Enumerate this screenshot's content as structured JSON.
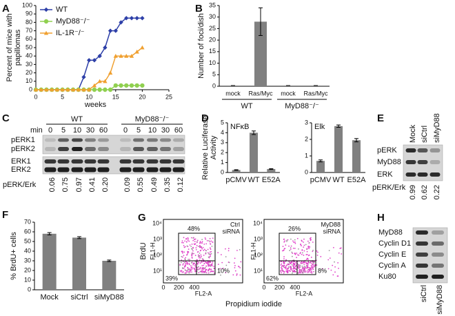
{
  "panel_labels": [
    "A",
    "B",
    "C",
    "D",
    "E",
    "F",
    "G",
    "H"
  ],
  "chart_data": [
    {
      "type": "line",
      "ylabel": [
        "Percent of mice with",
        "papillomas"
      ],
      "xlabel": "weeks",
      "x": [
        0,
        1,
        2,
        3,
        4,
        5,
        6,
        7,
        8,
        9,
        10,
        11,
        12,
        13,
        14,
        15,
        16,
        17,
        18,
        19,
        20
      ],
      "series": [
        {
          "name": "WT",
          "color": "#2d3fa8",
          "marker": "diamond",
          "values": [
            0,
            0,
            0,
            0,
            0,
            0,
            0,
            0,
            0,
            15,
            35,
            35,
            40,
            50,
            70,
            70,
            80,
            85,
            85,
            85,
            85
          ]
        },
        {
          "name": "MyD88⁻/⁻",
          "color": "#90d050",
          "marker": "circle",
          "values": [
            0,
            0,
            0,
            0,
            0,
            0,
            0,
            0,
            0,
            0,
            0,
            0,
            0,
            0,
            0,
            5,
            5,
            5,
            5,
            5,
            5
          ]
        },
        {
          "name": "IL-1R⁻/⁻",
          "color": "#f0a030",
          "marker": "triangle",
          "values": [
            0,
            0,
            0,
            0,
            0,
            0,
            0,
            0,
            0,
            0,
            0,
            5,
            10,
            10,
            20,
            40,
            40,
            40,
            40,
            45,
            50
          ]
        }
      ],
      "xlim": [
        0,
        25
      ],
      "xticks": [
        0,
        5,
        10,
        15,
        20,
        25
      ],
      "ylim": [
        0,
        100
      ],
      "yticks": [
        0,
        10,
        20,
        30,
        40,
        50,
        60,
        70,
        80,
        90,
        100
      ],
      "legend": "upper left"
    },
    {
      "type": "bar",
      "ylabel": "Number of foci/dish",
      "categories": [
        "mock",
        "Ras/Myc",
        "mock",
        "Ras/Myc"
      ],
      "groups": [
        "WT",
        "MyD88⁻/⁻"
      ],
      "values": [
        0.3,
        28,
        0.3,
        0.3
      ],
      "errors": [
        0,
        6,
        0,
        0
      ],
      "color": "#808080",
      "ylim": [
        0,
        35
      ],
      "yticks": [
        0,
        5,
        10,
        15,
        20,
        25,
        30,
        35
      ]
    },
    {
      "type": "bar",
      "title": "NFκB",
      "ylabel": [
        "Relative Luciferase",
        "Activity"
      ],
      "categories": [
        "pCMV",
        "WT",
        "E52A"
      ],
      "values": [
        0.25,
        4.0,
        0.35
      ],
      "errors": [
        0.03,
        0.18,
        0.03
      ],
      "color": "#808080",
      "ylim": [
        0,
        5
      ],
      "yticks": [
        0,
        1,
        2,
        3,
        4,
        5
      ]
    },
    {
      "type": "bar",
      "title": "Elk",
      "categories": [
        "pCMV",
        "WT",
        "E52A"
      ],
      "values": [
        0.7,
        2.8,
        1.95
      ],
      "errors": [
        0.06,
        0.07,
        0.1
      ],
      "color": "#808080",
      "ylim": [
        0,
        3
      ],
      "yticks": [
        0,
        1,
        2,
        3
      ]
    },
    {
      "type": "bar",
      "ylabel": "% BrdU+ cells",
      "categories": [
        "Mock",
        "siCtrl",
        "siMyD88"
      ],
      "values": [
        58,
        54,
        30
      ],
      "errors": [
        1.2,
        1,
        0.8
      ],
      "color": "#808080",
      "ylim": [
        0,
        70
      ],
      "yticks": [
        0,
        10,
        20,
        30,
        40,
        50,
        60,
        70
      ]
    }
  ],
  "blot_c": {
    "min_label": "min",
    "groups": [
      "WT",
      "MyD88⁻/⁻"
    ],
    "timepoints": [
      0,
      5,
      10,
      30,
      60,
      0,
      5,
      10,
      30,
      60
    ],
    "rows": [
      "pERK1",
      "pERK2",
      "ERK1",
      "ERK2"
    ],
    "ratio_label": "pERK/Erk",
    "ratios": [
      "0.06",
      "0.75",
      "0.97",
      "0.41",
      "0.20",
      "0.09",
      "0.55",
      "0.49",
      "0.35",
      "0.12"
    ]
  },
  "blot_e": {
    "lanes": [
      "Mock",
      "siCtrl",
      "siMyD88"
    ],
    "rows": [
      "pERK",
      "MyD88",
      "ERK"
    ],
    "ratio_label": "pERK/Erk",
    "ratios": [
      "0.99",
      "0.62",
      "0.22"
    ]
  },
  "flow": {
    "ylabel": "BrdU",
    "ychannel": "FL1-H",
    "xchannel": "FL2-A",
    "xlabel": "Propidium iodide",
    "yticks": [
      "10⁴",
      "10³",
      "10²",
      "10¹"
    ],
    "xticks": [
      0,
      200,
      400
    ],
    "plots": [
      {
        "title": [
          "Ctrl",
          "siRNA"
        ],
        "gates": [
          "48%",
          "39%",
          "10%"
        ]
      },
      {
        "title": [
          "MyD88",
          "siRNA"
        ],
        "gates": [
          "26%",
          "62%",
          "8%"
        ]
      }
    ]
  },
  "blot_h": {
    "rows": [
      "MyD88",
      "Cyclin D1",
      "Cyclin E",
      "Cyclin A",
      "Ku80"
    ],
    "lanes": [
      "siCtrl",
      "siMyD88"
    ]
  }
}
